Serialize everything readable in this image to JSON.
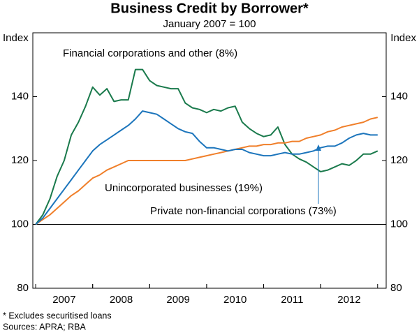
{
  "chart_data": {
    "type": "line",
    "title": "Business Credit by Borrower*",
    "subtitle": "January 2007 = 100",
    "ylabel": "Index",
    "y2label": "Index",
    "notes": [
      "*     Excludes securitised loans",
      "Sources: APRA; RBA"
    ],
    "x": [
      2007.0,
      2007.125,
      2007.25,
      2007.375,
      2007.5,
      2007.625,
      2007.75,
      2007.875,
      2008.0,
      2008.125,
      2008.25,
      2008.375,
      2008.5,
      2008.625,
      2008.75,
      2008.875,
      2009.0,
      2009.125,
      2009.25,
      2009.375,
      2009.5,
      2009.625,
      2009.75,
      2009.875,
      2010.0,
      2010.125,
      2010.25,
      2010.375,
      2010.5,
      2010.625,
      2010.75,
      2010.875,
      2011.0,
      2011.125,
      2011.25,
      2011.375,
      2011.5,
      2011.625,
      2011.75,
      2011.875,
      2012.0,
      2012.125,
      2012.25,
      2012.375,
      2012.5,
      2012.625,
      2012.75,
      2012.875,
      2013.0
    ],
    "xlim": [
      2006.95,
      2013.15
    ],
    "xticks": [
      {
        "value": 2007.5,
        "label": "2007"
      },
      {
        "value": 2008.5,
        "label": "2008"
      },
      {
        "value": 2009.5,
        "label": "2009"
      },
      {
        "value": 2010.5,
        "label": "2010"
      },
      {
        "value": 2011.5,
        "label": "2011"
      },
      {
        "value": 2012.5,
        "label": "2012"
      }
    ],
    "ylim": [
      80,
      160
    ],
    "yticks": [
      80,
      100,
      120,
      140
    ],
    "y2lim": [
      80,
      160
    ],
    "y2ticks": [
      80,
      100,
      120,
      140
    ],
    "reference_line": 100,
    "series": [
      {
        "name": "Financial corporations and other (8%)",
        "color": "#1a7a4c",
        "values": [
          100,
          103,
          108,
          115,
          120,
          128,
          132,
          137,
          143,
          140.5,
          142.5,
          138.5,
          139,
          139,
          148.5,
          148.5,
          145,
          143.5,
          143,
          142.5,
          142.5,
          138,
          136.5,
          136,
          135,
          136,
          135.5,
          136.5,
          137,
          132,
          130,
          128.5,
          127.5,
          128,
          130.5,
          125,
          122,
          120.5,
          119.5,
          118,
          116.5,
          117,
          118,
          119,
          118.5,
          120,
          122,
          122,
          123
        ]
      },
      {
        "name": "Unincorporated businesses (19%)",
        "color": "#f07f2a",
        "values": [
          100,
          101.5,
          103,
          105,
          107,
          109,
          110.5,
          112.5,
          114.5,
          115.5,
          117,
          118,
          119,
          120,
          120,
          120,
          120,
          120,
          120,
          120,
          120,
          120,
          120.5,
          121,
          121.5,
          122,
          122.5,
          123,
          123.5,
          124,
          124.5,
          124.5,
          125,
          125,
          125.5,
          125.5,
          126,
          126,
          127,
          127.5,
          128,
          129,
          129.5,
          130.5,
          131,
          131.5,
          132,
          133,
          133.5
        ]
      },
      {
        "name": "Private non-financial corporations (73%)",
        "color": "#1c75bc",
        "values": [
          100,
          102,
          105,
          108,
          111,
          114,
          117,
          120,
          123,
          125,
          126.5,
          128,
          129.5,
          131,
          133,
          135.5,
          135,
          134.5,
          133,
          131.5,
          130,
          129,
          128.5,
          126,
          124,
          124,
          123.5,
          123,
          123.5,
          123.5,
          122.5,
          122,
          121.5,
          121.5,
          122,
          122.5,
          122,
          122,
          122.5,
          123,
          124,
          124.5,
          124.5,
          125.5,
          127,
          128,
          128.5,
          128,
          128
        ]
      }
    ]
  }
}
